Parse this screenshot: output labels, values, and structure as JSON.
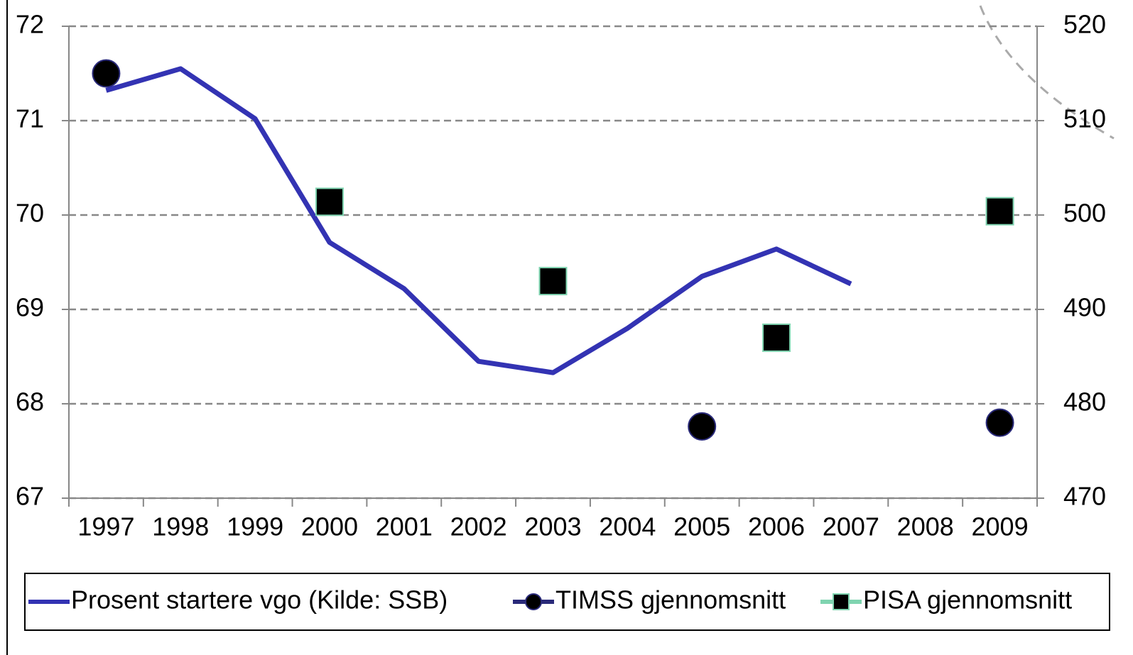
{
  "chart_data": {
    "type": "line",
    "categories": [
      "1997",
      "1998",
      "1999",
      "2000",
      "2001",
      "2002",
      "2003",
      "2004",
      "2005",
      "2006",
      "2007",
      "2008",
      "2009"
    ],
    "series": [
      {
        "name": "Prosent startere vgo (Kilde: SSB)",
        "color": "#3333b3",
        "marker": "none",
        "values": [
          71.32,
          71.55,
          71.02,
          69.71,
          69.22,
          68.45,
          68.33,
          68.8,
          69.35,
          69.64,
          69.27,
          null,
          null
        ]
      },
      {
        "name": "TIMSS gjennomsnitt",
        "color": "#000000",
        "edge": "#2a2a7a",
        "marker": "circle",
        "axis": "y2",
        "values": [
          515.0,
          null,
          null,
          null,
          null,
          null,
          null,
          null,
          477.6,
          null,
          null,
          null,
          478.0
        ]
      },
      {
        "name": "PISA gjennomsnitt",
        "color": "#000000",
        "edge": "#7fd4b0",
        "marker": "square",
        "axis": "y2",
        "values": [
          null,
          null,
          null,
          501.4,
          null,
          null,
          493.0,
          null,
          null,
          487.0,
          null,
          null,
          500.4
        ]
      }
    ],
    "ylim": [
      67,
      72
    ],
    "yticks": [
      67,
      68,
      69,
      70,
      71,
      72
    ],
    "y2lim": [
      470,
      520
    ],
    "y2ticks": [
      470,
      480,
      490,
      500,
      510,
      520
    ],
    "grid": true,
    "legend": "bottom"
  }
}
